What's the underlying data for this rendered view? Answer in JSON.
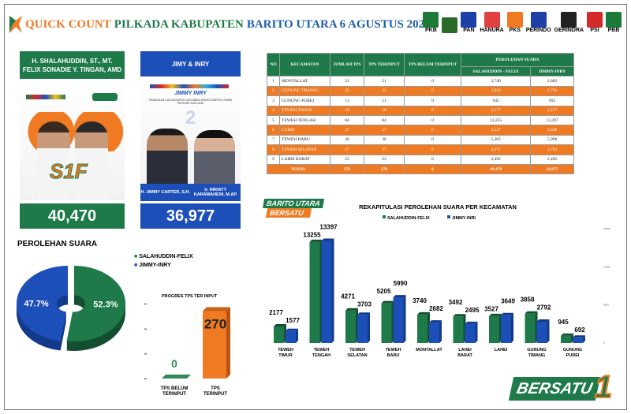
{
  "header": {
    "title_part1": "QUICK COUNT",
    "title_part2": "PILKADA KABUPATEN",
    "title_part3": "BARITO UTARA 6 AGUSTUS 2025",
    "party_logos": [
      {
        "label": "PKB",
        "color": "#1f7a3a"
      },
      {
        "label": "",
        "color": "#2a6b2a"
      },
      {
        "label": "PAN",
        "color": "#1d3fa8"
      },
      {
        "label": "HANURA",
        "color": "#e04040"
      },
      {
        "label": "PKS",
        "color": "#f07a22"
      },
      {
        "label": "PERINDO",
        "color": "#1d3fa8"
      },
      {
        "label": "GERINDRA",
        "color": "#222"
      },
      {
        "label": "PSI",
        "color": "#d42a2a"
      },
      {
        "label": "PBB",
        "color": "#1f7a3a"
      }
    ]
  },
  "candidate1": {
    "names": "H. SHALAHUDDIN, ST., MT.\nFELIX SONADIE Y. TINGAN, AMD",
    "logo_text": "S1F",
    "total": "40,470",
    "color": "#1f7a4a"
  },
  "candidate2": {
    "header": "JIMY & INRY",
    "poster_title": "JIMMY INRY",
    "poster_subtitle": "PASANGAN CALON BUPATI DAN WAKIL BUPATI BARITO UTARA PERIODE 2025-2030",
    "number": "2",
    "name1": "H. JIMMY CARTER, S.H.",
    "name2": "Ir. INRIATY KARAWAHENI, M.AP.",
    "total": "36,977",
    "color": "#1d4fb8"
  },
  "table": {
    "headers": {
      "no": "NO",
      "kecamatan": "KECAMATAN",
      "jumlah_tps": "JUMLAH TPS",
      "tps_terinput": "TPS TERINPUT",
      "tps_belum": "TPS BELUM TERINPUT",
      "perolehan": "PEROLEHAN SUARA",
      "c1": "SALAHUDDIN - FELIX",
      "c2": "JIMMY-INRY"
    },
    "rows": [
      [
        "1",
        "MONTALLAT",
        "21",
        "21",
        "0",
        "3,740",
        "2,682"
      ],
      [
        "2",
        "GUNUNG TIMANG",
        "25",
        "25",
        "0",
        "3,858",
        "2,792"
      ],
      [
        "3",
        "GUNUNG PUREI",
        "11",
        "11",
        "0",
        "945",
        "692"
      ],
      [
        "4",
        "TEWEH TIMUR",
        "16",
        "16",
        "0",
        "2,177",
        "1,577"
      ],
      [
        "5",
        "TEWEH TENGAH",
        "84",
        "84",
        "0",
        "13,255",
        "13,397"
      ],
      [
        "6",
        "LAHEI",
        "27",
        "27",
        "0",
        "3,527",
        "3,649"
      ],
      [
        "7",
        "TEWEH BARU",
        "36",
        "36",
        "0",
        "5,205",
        "5,990"
      ],
      [
        "8",
        "TEWEH SELATAN",
        "27",
        "27",
        "0",
        "4,271",
        "3,703"
      ],
      [
        "9",
        "LAHEI BARAT",
        "23",
        "23",
        "0",
        "3,492",
        "2,495"
      ]
    ],
    "total": [
      "TOTAL",
      "270",
      "270",
      "0",
      "40,470",
      "36,977"
    ]
  },
  "branding": {
    "barito_logo": "BARITO UTARA BERSATU",
    "bersatu_logo": "BERSATU 1"
  },
  "chart_data": [
    {
      "type": "bar",
      "title": "REKAPITULASI PEROLEHAN SUARA PER KECAMATAN",
      "categories": [
        "TEWEH TIMUR",
        "TEWEH TENGAH",
        "TEWEH SELATAN",
        "TEWEH BARU",
        "MONTALLAT",
        "LAHEI BARAT",
        "LAHEI",
        "GUNUNG TIMANG",
        "GUNUNG PUREI"
      ],
      "series": [
        {
          "name": "SALAHUDDIN-FELIX",
          "color": "#1f7a4a",
          "values": [
            2177,
            13255,
            4271,
            5205,
            3740,
            3492,
            3527,
            3858,
            945
          ]
        },
        {
          "name": "JIMMY-INRI",
          "color": "#1d4fb8",
          "values": [
            1577,
            13397,
            3703,
            5990,
            2682,
            2495,
            3649,
            2792,
            692
          ]
        }
      ],
      "ylim": [
        0,
        15000
      ],
      "yticks": [
        "0",
        "5000",
        "10000",
        "15000"
      ],
      "legend": "top"
    },
    {
      "type": "pie",
      "title": "PEROLEHAN SUARA",
      "slices": [
        {
          "name": "SALAHUDDIN-FELIX",
          "value": 52.3,
          "label": "52.3%",
          "color": "#1f7a4a"
        },
        {
          "name": "JIMMY-INRY",
          "value": 47.7,
          "label": "47.7%",
          "color": "#1d4fb8"
        }
      ],
      "legend": "top-right"
    },
    {
      "type": "bar",
      "title": "PROGRES TPS TER INPUT",
      "categories": [
        "TPS BELUM TERINPUT",
        "TPS TERINPUT"
      ],
      "values": [
        0,
        270
      ],
      "labels": [
        "0",
        "270"
      ],
      "colors": [
        "#2e8a5a",
        "#f07a22"
      ],
      "ylim": [
        0,
        300
      ]
    }
  ]
}
